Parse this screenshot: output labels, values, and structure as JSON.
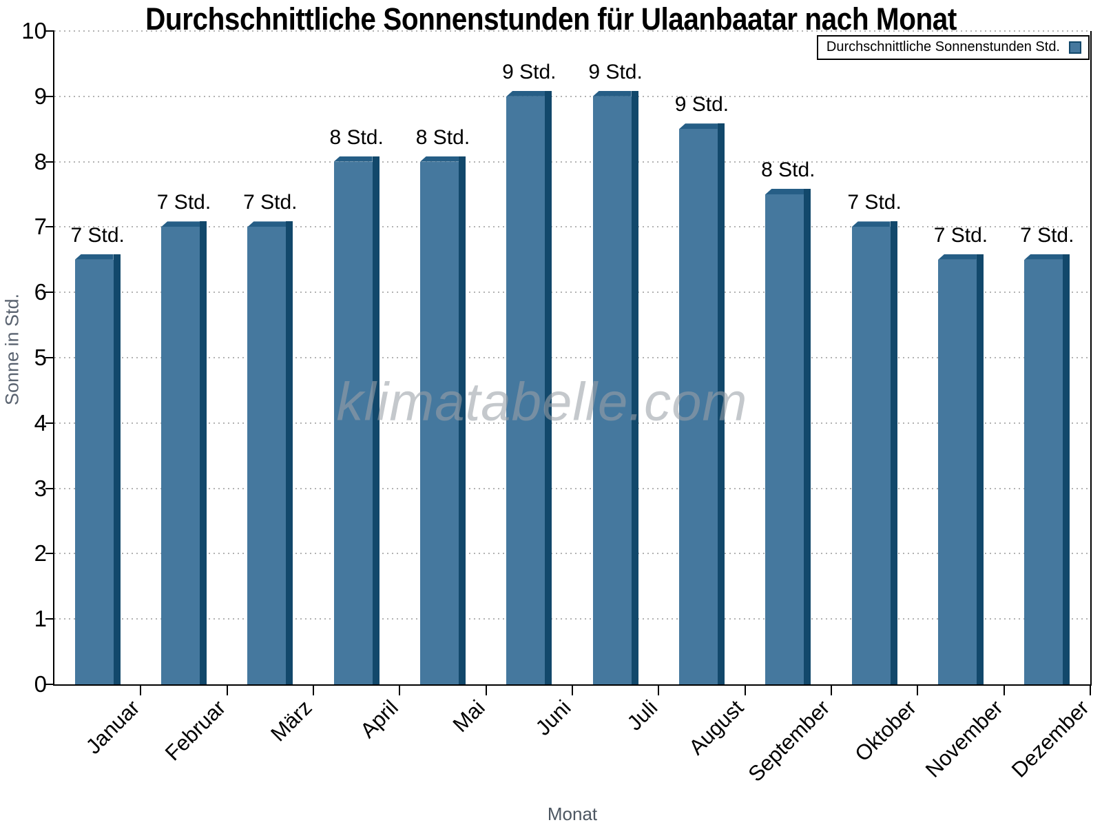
{
  "watermark": "klimatabelle.com",
  "chart_data": {
    "type": "bar",
    "title": "Durchschnittliche Sonnenstunden für Ulaanbaatar nach Monat",
    "xlabel": "Monat",
    "ylabel": "Sonne in Std.",
    "ylim": [
      0,
      10
    ],
    "y_ticks": [
      0,
      1,
      2,
      3,
      4,
      5,
      6,
      7,
      8,
      9,
      10
    ],
    "grid": "horizontal-dotted",
    "legend": {
      "label": "Durchschnittliche Sonnenstunden Std.",
      "position": "top-right"
    },
    "categories": [
      "Januar",
      "Februar",
      "März",
      "April",
      "Mai",
      "Juni",
      "Juli",
      "August",
      "September",
      "Oktober",
      "November",
      "Dezember"
    ],
    "values": [
      6.5,
      7,
      7,
      8,
      8,
      9,
      9,
      8.5,
      7.5,
      7,
      6.5,
      6.5
    ],
    "bar_labels": [
      "7 Std.",
      "7 Std.",
      "7 Std.",
      "8 Std.",
      "8 Std.",
      "9 Std.",
      "9 Std.",
      "9 Std.",
      "8 Std.",
      "7 Std.",
      "7 Std.",
      "7 Std."
    ],
    "colors": {
      "bar_face": "#45789E",
      "bar_side": "#12486B",
      "bar_top": "#265E86",
      "grid": "#b2b2b2",
      "axis": "#000000",
      "axis_title": "#5a6370"
    }
  }
}
